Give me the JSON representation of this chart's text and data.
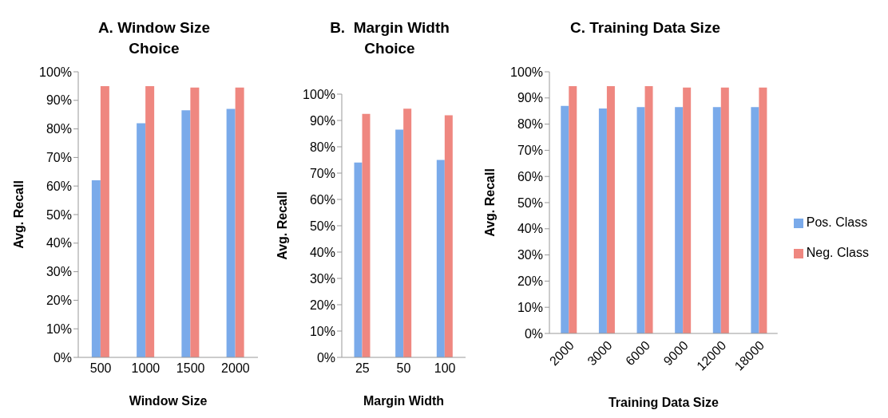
{
  "chart_data": [
    {
      "type": "bar",
      "title": "A. Window Size Choice",
      "xlabel": "Window Size",
      "ylabel": "Avg. Recall",
      "categories": [
        "500",
        "1000",
        "1500",
        "2000"
      ],
      "series": [
        {
          "color": "#7aaaea",
          "values": [
            62,
            82,
            86.5,
            87
          ]
        },
        {
          "color": "#ef8780",
          "values": [
            95,
            95,
            94.5,
            94.5
          ]
        }
      ],
      "ylim": [
        0,
        100
      ],
      "yticks": [
        {
          "value": 0,
          "label": "0%"
        },
        {
          "value": 10,
          "label": "10%"
        },
        {
          "value": 20,
          "label": "20%"
        },
        {
          "value": 30,
          "label": "30%"
        },
        {
          "value": 40,
          "label": "40%"
        },
        {
          "value": 50,
          "label": "50%"
        },
        {
          "value": 60,
          "label": "60%"
        },
        {
          "value": 70,
          "label": "70%"
        },
        {
          "value": 80,
          "label": "80%"
        },
        {
          "value": 90,
          "label": "90%"
        },
        {
          "value": 100,
          "label": "100%"
        }
      ],
      "grid": false,
      "legend": false
    },
    {
      "type": "bar",
      "title": "B.  Margin Width Choice",
      "xlabel": "Margin Width",
      "ylabel": "Avg. Recall",
      "categories": [
        "25",
        "50",
        "100"
      ],
      "series": [
        {
          "color": "#7aaaea",
          "values": [
            74,
            86.5,
            75
          ]
        },
        {
          "color": "#ef8780",
          "values": [
            92.5,
            94.5,
            92
          ]
        }
      ],
      "ylim": [
        0,
        100
      ],
      "yticks": [
        {
          "value": 0,
          "label": "0%"
        },
        {
          "value": 10,
          "label": "10%"
        },
        {
          "value": 20,
          "label": "20%"
        },
        {
          "value": 30,
          "label": "30%"
        },
        {
          "value": 40,
          "label": "40%"
        },
        {
          "value": 50,
          "label": "50%"
        },
        {
          "value": 60,
          "label": "60%"
        },
        {
          "value": 70,
          "label": "70%"
        },
        {
          "value": 80,
          "label": "80%"
        },
        {
          "value": 90,
          "label": "90%"
        },
        {
          "value": 100,
          "label": "100%"
        }
      ],
      "grid": false,
      "legend": false
    },
    {
      "type": "bar",
      "title": "C. Training Data Size",
      "xlabel": "Training Data Size",
      "ylabel": "Avg. Recall",
      "categories": [
        "2000",
        "3000",
        "6000",
        "9000",
        "12000",
        "18000"
      ],
      "series": [
        {
          "name": "Pos. Class",
          "color": "#7aaaea",
          "values": [
            87,
            86,
            86.5,
            86.5,
            86.5,
            86.5
          ]
        },
        {
          "name": "Neg. Class",
          "color": "#ef8780",
          "values": [
            94.5,
            94.5,
            94.5,
            94,
            94,
            94
          ]
        }
      ],
      "ylim": [
        0,
        100
      ],
      "yticks": [
        {
          "value": 0,
          "label": "0%"
        },
        {
          "value": 10,
          "label": "10%"
        },
        {
          "value": 20,
          "label": "20%"
        },
        {
          "value": 30,
          "label": "30%"
        },
        {
          "value": 40,
          "label": "40%"
        },
        {
          "value": 50,
          "label": "50%"
        },
        {
          "value": 60,
          "label": "60%"
        },
        {
          "value": 70,
          "label": "70%"
        },
        {
          "value": 80,
          "label": "80%"
        },
        {
          "value": 90,
          "label": "90%"
        },
        {
          "value": 100,
          "label": "100%"
        }
      ],
      "grid": false,
      "legend": "right"
    }
  ]
}
